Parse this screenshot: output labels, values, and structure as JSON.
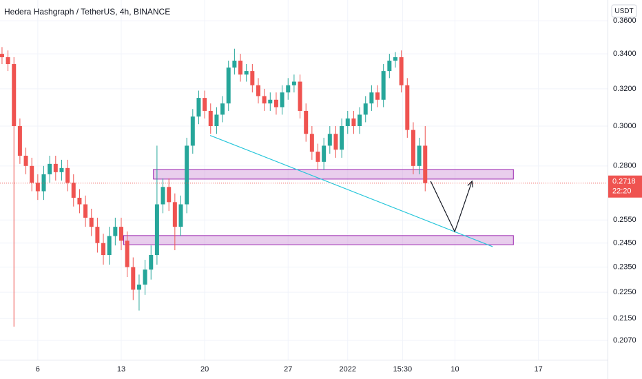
{
  "chart_data": {
    "type": "candlestick",
    "title": "Hedera Hashgraph / TetherUS, 4h, BINANCE",
    "unit": "USDT",
    "log_scale": true,
    "grid": true,
    "up_color": "#26a69a",
    "down_color": "#ef5350",
    "x": [
      3,
      3.5,
      4,
      4.5,
      5,
      5.5,
      6,
      6.5,
      7,
      7.5,
      8,
      8.5,
      9,
      9.5,
      10,
      10.5,
      11,
      11.5,
      12,
      12.5,
      13,
      13.5,
      14,
      14.5,
      15,
      15.5,
      16,
      16.5,
      17,
      17.5,
      18,
      18.5,
      19,
      19.5,
      20,
      20.5,
      21,
      21.5,
      22,
      22.5,
      23,
      23.5,
      24,
      24.5,
      25,
      25.5,
      26,
      26.5,
      27,
      27.5,
      28,
      28.5,
      29,
      29.5,
      30,
      30.5,
      31,
      31.5,
      32,
      32.5,
      33,
      33.5,
      34,
      34.5,
      35,
      35.5,
      36,
      36.5,
      37,
      37.5,
      38,
      38.5
    ],
    "open": [
      0.34,
      0.338,
      0.334,
      0.3,
      0.285,
      0.28,
      0.272,
      0.268,
      0.276,
      0.281,
      0.277,
      0.279,
      0.272,
      0.265,
      0.262,
      0.256,
      0.252,
      0.245,
      0.24,
      0.248,
      0.252,
      0.246,
      0.235,
      0.226,
      0.228,
      0.234,
      0.24,
      0.262,
      0.27,
      0.263,
      0.252,
      0.262,
      0.29,
      0.305,
      0.315,
      0.308,
      0.3,
      0.306,
      0.312,
      0.332,
      0.336,
      0.328,
      0.33,
      0.322,
      0.316,
      0.312,
      0.314,
      0.31,
      0.318,
      0.322,
      0.324,
      0.308,
      0.296,
      0.287,
      0.282,
      0.29,
      0.296,
      0.288,
      0.3,
      0.304,
      0.3,
      0.306,
      0.312,
      0.318,
      0.314,
      0.33,
      0.336,
      0.338,
      0.322,
      0.298,
      0.28,
      0.29
    ],
    "high": [
      0.344,
      0.342,
      0.338,
      0.304,
      0.289,
      0.284,
      0.276,
      0.28,
      0.285,
      0.285,
      0.283,
      0.283,
      0.276,
      0.269,
      0.266,
      0.26,
      0.256,
      0.249,
      0.252,
      0.256,
      0.256,
      0.25,
      0.239,
      0.232,
      0.238,
      0.244,
      0.29,
      0.274,
      0.274,
      0.267,
      0.266,
      0.294,
      0.309,
      0.319,
      0.319,
      0.312,
      0.31,
      0.316,
      0.336,
      0.343,
      0.34,
      0.334,
      0.334,
      0.326,
      0.32,
      0.318,
      0.318,
      0.322,
      0.326,
      0.328,
      0.328,
      0.312,
      0.3,
      0.291,
      0.294,
      0.3,
      0.3,
      0.304,
      0.308,
      0.308,
      0.31,
      0.316,
      0.322,
      0.322,
      0.334,
      0.34,
      0.341,
      0.342,
      0.326,
      0.302,
      0.294,
      0.3
    ],
    "low": [
      0.334,
      0.33,
      0.212,
      0.281,
      0.276,
      0.268,
      0.264,
      0.264,
      0.272,
      0.273,
      0.273,
      0.268,
      0.261,
      0.258,
      0.252,
      0.248,
      0.241,
      0.236,
      0.236,
      0.244,
      0.242,
      0.231,
      0.222,
      0.218,
      0.224,
      0.23,
      0.236,
      0.258,
      0.259,
      0.242,
      0.248,
      0.258,
      0.286,
      0.301,
      0.304,
      0.296,
      0.296,
      0.302,
      0.308,
      0.328,
      0.324,
      0.324,
      0.318,
      0.312,
      0.308,
      0.308,
      0.306,
      0.306,
      0.314,
      0.318,
      0.304,
      0.292,
      0.283,
      0.278,
      0.278,
      0.286,
      0.284,
      0.284,
      0.296,
      0.296,
      0.296,
      0.302,
      0.308,
      0.31,
      0.31,
      0.326,
      0.332,
      0.318,
      0.294,
      0.276,
      0.276,
      0.268
    ],
    "close": [
      0.338,
      0.334,
      0.3,
      0.285,
      0.28,
      0.272,
      0.268,
      0.276,
      0.281,
      0.277,
      0.279,
      0.272,
      0.265,
      0.262,
      0.256,
      0.252,
      0.245,
      0.24,
      0.248,
      0.252,
      0.246,
      0.235,
      0.226,
      0.228,
      0.234,
      0.24,
      0.262,
      0.27,
      0.263,
      0.252,
      0.262,
      0.29,
      0.305,
      0.315,
      0.308,
      0.3,
      0.306,
      0.312,
      0.332,
      0.336,
      0.328,
      0.33,
      0.322,
      0.316,
      0.312,
      0.314,
      0.31,
      0.318,
      0.322,
      0.324,
      0.308,
      0.296,
      0.287,
      0.282,
      0.29,
      0.296,
      0.288,
      0.3,
      0.304,
      0.3,
      0.306,
      0.312,
      0.318,
      0.314,
      0.33,
      0.336,
      0.338,
      0.322,
      0.298,
      0.28,
      0.29,
      0.2718
    ],
    "xlim": [
      2.83,
      53.8
    ],
    "ylim": [
      0.2002,
      0.3732
    ],
    "xticks": [
      6,
      13,
      20,
      27,
      {
        "value": 32,
        "label": "2022"
      },
      {
        "value": 36.6,
        "label": "15:30"
      },
      {
        "value": 41,
        "label": "10"
      },
      {
        "value": 48,
        "label": "17"
      }
    ],
    "yticks": [
      {
        "value": 0.36,
        "label": "0.3600"
      },
      {
        "value": 0.34,
        "label": "0.3400"
      },
      {
        "value": 0.32,
        "label": "0.3200"
      },
      {
        "value": 0.3,
        "label": "0.3000"
      },
      {
        "value": 0.28,
        "label": "0.2800"
      },
      {
        "value": 0.255,
        "label": "0.2550"
      },
      {
        "value": 0.245,
        "label": "0.2450"
      },
      {
        "value": 0.235,
        "label": "0.2350"
      },
      {
        "value": 0.225,
        "label": "0.2250"
      },
      {
        "value": 0.215,
        "label": "0.2150"
      },
      {
        "value": 0.207,
        "label": "0.2070"
      }
    ],
    "last_price": 0.2718,
    "countdown": "22:20",
    "zones": [
      {
        "x": [
          15.7,
          45.9
        ],
        "y": [
          0.2737,
          0.2783
        ]
      },
      {
        "x": [
          13.2,
          45.9
        ],
        "y": [
          0.2443,
          0.2482
        ]
      }
    ],
    "trendline": {
      "x": [
        20.46,
        44.16
      ],
      "y": [
        0.2952,
        0.2435
      ]
    },
    "arrow": {
      "x": [
        38.96,
        40.98,
        42.43
      ],
      "y": [
        0.2727,
        0.2499,
        0.2727
      ]
    }
  }
}
